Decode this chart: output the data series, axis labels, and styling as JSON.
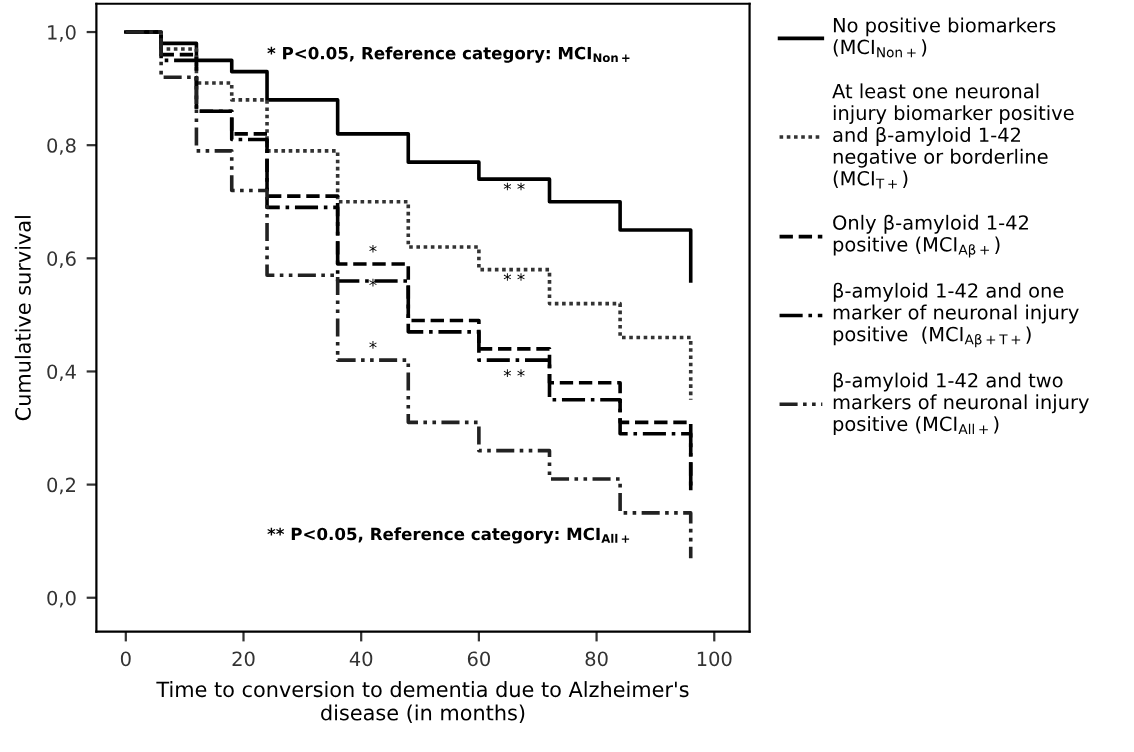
{
  "chart_data": {
    "type": "step",
    "xlabel": "Time to conversion to dementia due to Alzheimer's\ndisease (in months)",
    "ylabel": "Cumulative survival",
    "x": [
      0,
      6,
      12,
      18,
      24,
      36,
      48,
      60,
      72,
      84,
      96,
      96
    ],
    "series": [
      {
        "name": "No positive biomarkers\n(MCI$_{Non+}$)",
        "color": "#000000",
        "line_style": "solid",
        "values": [
          1.0,
          0.98,
          0.95,
          0.93,
          0.88,
          0.82,
          0.77,
          0.74,
          0.7,
          0.65,
          0.65,
          0.56
        ]
      },
      {
        "name": "At least one neuronal\ninjury biomarker positive\nand β-amyloid 1-42\nnegative or borderline\n(MCI$_{T+}$)",
        "color": "#333333",
        "line_style": "dotted",
        "values": [
          1.0,
          0.97,
          0.91,
          0.88,
          0.79,
          0.7,
          0.62,
          0.58,
          0.52,
          0.46,
          0.46,
          0.35
        ]
      },
      {
        "name": "Only β-amyloid 1-42\npositive (MCI$_{Aβ+}$)",
        "color": "#000000",
        "line_style": "dashed",
        "values": [
          1.0,
          0.96,
          0.86,
          0.82,
          0.71,
          0.59,
          0.49,
          0.44,
          0.38,
          0.31,
          0.31,
          0.19
        ]
      },
      {
        "name": "β-amyloid 1-42 and one\nmarker of neuronal injury\npositive  (MCI$_{Aβ+T+}$)",
        "color": "#000000",
        "line_style": "dashdot",
        "values": [
          1.0,
          0.95,
          0.86,
          0.81,
          0.69,
          0.56,
          0.47,
          0.42,
          0.35,
          0.29,
          0.29,
          0.19
        ]
      },
      {
        "name": "β-amyloid 1-42 and two\nmarkers of neuronal injury\npositive (MCI$_{All+}$)",
        "color": "#222222",
        "line_style": "dashdotdot",
        "values": [
          1.0,
          0.92,
          0.79,
          0.72,
          0.57,
          0.42,
          0.31,
          0.26,
          0.21,
          0.15,
          0.15,
          0.07
        ]
      }
    ],
    "xlim": [
      -5,
      106
    ],
    "ylim": [
      -0.06,
      1.05
    ],
    "xticks": [
      0,
      20,
      40,
      60,
      80,
      100
    ],
    "yticks": [
      {
        "value": 0.0,
        "label": "0,0"
      },
      {
        "value": 0.2,
        "label": "0,2"
      },
      {
        "value": 0.4,
        "label": "0,4"
      },
      {
        "value": 0.6,
        "label": "0,6"
      },
      {
        "value": 0.8,
        "label": "0,8"
      },
      {
        "value": 1.0,
        "label": "1,0"
      }
    ],
    "annotations": [
      "* P<0.05, Reference category: MCI$_{Non+}$",
      "** P<0.05, Reference category: MCI$_{All+}$",
      "* *",
      "* *",
      "*",
      "*",
      "*",
      "* *"
    ],
    "grid": false,
    "legend": "right",
    "marker": "none"
  }
}
